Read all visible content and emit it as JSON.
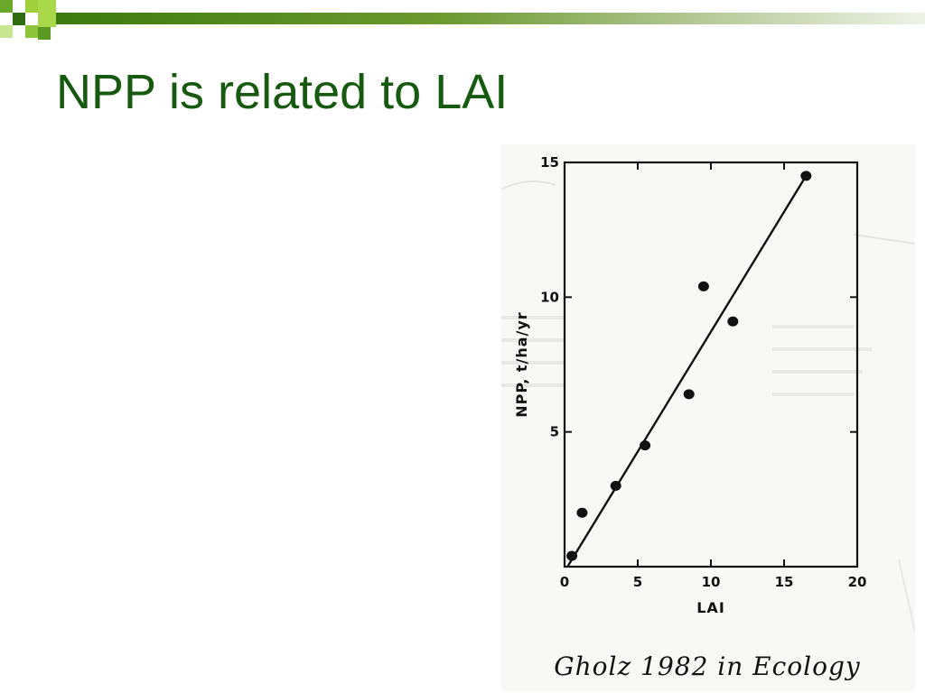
{
  "slide": {
    "title": "NPP is related to LAI",
    "accent_color": "#155a0e",
    "citation": "Gholz 1982 in Ecology"
  },
  "chart_data": {
    "type": "scatter",
    "xlabel": "LAI",
    "ylabel": "NPP, t/ha/yr",
    "xlim": [
      0,
      20
    ],
    "ylim": [
      0,
      15
    ],
    "x_ticks": [
      0,
      5,
      10,
      15,
      20
    ],
    "y_ticks": [
      5,
      10,
      15
    ],
    "x_tick_labels": [
      "0",
      "5",
      "10",
      "15",
      "20"
    ],
    "y_tick_labels": [
      "5",
      "10",
      "15"
    ],
    "grid": false,
    "series": [
      {
        "x": [
          0.5,
          1.2,
          3.5,
          5.5,
          8.5,
          9.5,
          11.5,
          16.5
        ],
        "y": [
          0.4,
          2.0,
          3.0,
          4.5,
          6.4,
          10.4,
          9.1,
          14.5
        ]
      }
    ],
    "fit_line": {
      "x": [
        0.2,
        16.5
      ],
      "y": [
        0.0,
        14.5
      ]
    }
  }
}
